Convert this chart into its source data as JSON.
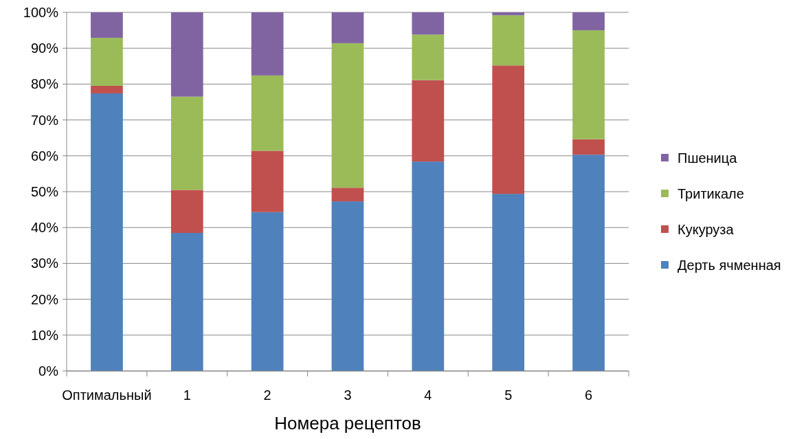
{
  "chart_data": {
    "type": "bar",
    "stacked": true,
    "xlabel": "Номера рецептов",
    "categories": [
      "Оптимальный",
      "1",
      "2",
      "3",
      "4",
      "5",
      "6"
    ],
    "series": [
      {
        "name": "Дерть ячменная",
        "color": "#4f81bd",
        "values": [
          77.4,
          38.5,
          44.3,
          47.3,
          58.4,
          49.4,
          60.3
        ]
      },
      {
        "name": "Кукуруза",
        "color": "#c0504d",
        "values": [
          2.1,
          12.0,
          17.1,
          3.8,
          22.7,
          35.8,
          4.3
        ]
      },
      {
        "name": "Тритикале",
        "color": "#9bbb59",
        "values": [
          13.4,
          26.0,
          21.0,
          40.3,
          12.7,
          14.0,
          30.4
        ]
      },
      {
        "name": "Пшеница",
        "color": "#8064a2",
        "values": [
          7.1,
          23.5,
          17.6,
          8.6,
          6.2,
          0.8,
          5.0
        ]
      }
    ],
    "ylim": [
      0,
      100
    ],
    "yticks": [
      {
        "value": 0,
        "label": "0%"
      },
      {
        "value": 10,
        "label": "10%"
      },
      {
        "value": 20,
        "label": "20%"
      },
      {
        "value": 30,
        "label": "30%"
      },
      {
        "value": 40,
        "label": "40%"
      },
      {
        "value": 50,
        "label": "50%"
      },
      {
        "value": 60,
        "label": "60%"
      },
      {
        "value": 70,
        "label": "70%"
      },
      {
        "value": 80,
        "label": "80%"
      },
      {
        "value": 90,
        "label": "90%"
      },
      {
        "value": 100,
        "label": "100%"
      }
    ],
    "grid": "y",
    "legend": "right"
  }
}
